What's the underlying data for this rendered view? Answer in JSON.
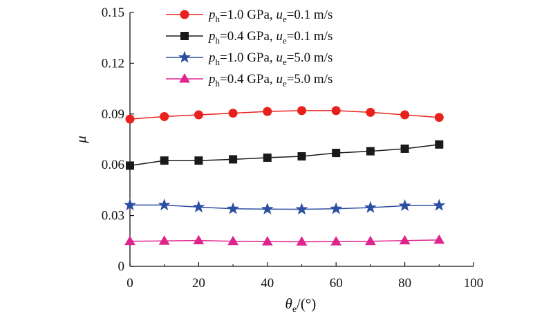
{
  "chart_data": {
    "type": "line",
    "xlabel": {
      "symbol": "θ",
      "subscript": "e",
      "rest": "/(°)"
    },
    "ylabel": "μ",
    "xlim": [
      0,
      100
    ],
    "ylim": [
      0,
      0.15
    ],
    "x_ticks": [
      0,
      20,
      40,
      60,
      80,
      100
    ],
    "x_tick_labels": [
      "0",
      "20",
      "40",
      "60",
      "80",
      "100"
    ],
    "y_ticks": [
      0,
      0.03,
      0.06,
      0.09,
      0.12,
      0.15
    ],
    "y_tick_labels": [
      "0",
      "0.03",
      "0.06",
      "0.09",
      "0.12",
      "0.15"
    ],
    "legend_position": "top",
    "x": [
      0,
      10,
      20,
      30,
      40,
      50,
      60,
      70,
      80,
      90
    ],
    "series": [
      {
        "legend": {
          "p": "p",
          "p_sub": "h",
          "p_val": "=1.0 GPa, ",
          "u": "u",
          "u_sub": "e",
          "u_val": "=0.1 m/s"
        },
        "marker": "circle",
        "color": "#e8211d",
        "values": [
          0.087,
          0.0885,
          0.0895,
          0.0905,
          0.0915,
          0.092,
          0.092,
          0.091,
          0.0895,
          0.088
        ]
      },
      {
        "legend": {
          "p": "p",
          "p_sub": "h",
          "p_val": "=0.4 GPa, ",
          "u": "u",
          "u_sub": "e",
          "u_val": "=0.1 m/s"
        },
        "marker": "square",
        "color": "#1a1a1a",
        "values": [
          0.0595,
          0.0625,
          0.0625,
          0.0632,
          0.0642,
          0.065,
          0.067,
          0.068,
          0.0695,
          0.072
        ]
      },
      {
        "legend": {
          "p": "p",
          "p_sub": "h",
          "p_val": "=1.0 GPa, ",
          "u": "u",
          "u_sub": "e",
          "u_val": "=5.0 m/s"
        },
        "marker": "star",
        "color": "#2d4fa3",
        "values": [
          0.0362,
          0.0362,
          0.035,
          0.034,
          0.0338,
          0.0337,
          0.034,
          0.0347,
          0.0358,
          0.036
        ]
      },
      {
        "legend": {
          "p": "p",
          "p_sub": "h",
          "p_val": "=0.4 GPa, ",
          "u": "u",
          "u_sub": "e",
          "u_val": "=5.0 m/s"
        },
        "marker": "triangle",
        "color": "#e0248e",
        "values": [
          0.0148,
          0.015,
          0.0153,
          0.0148,
          0.0146,
          0.0145,
          0.0146,
          0.0148,
          0.0152,
          0.0156
        ]
      }
    ]
  }
}
